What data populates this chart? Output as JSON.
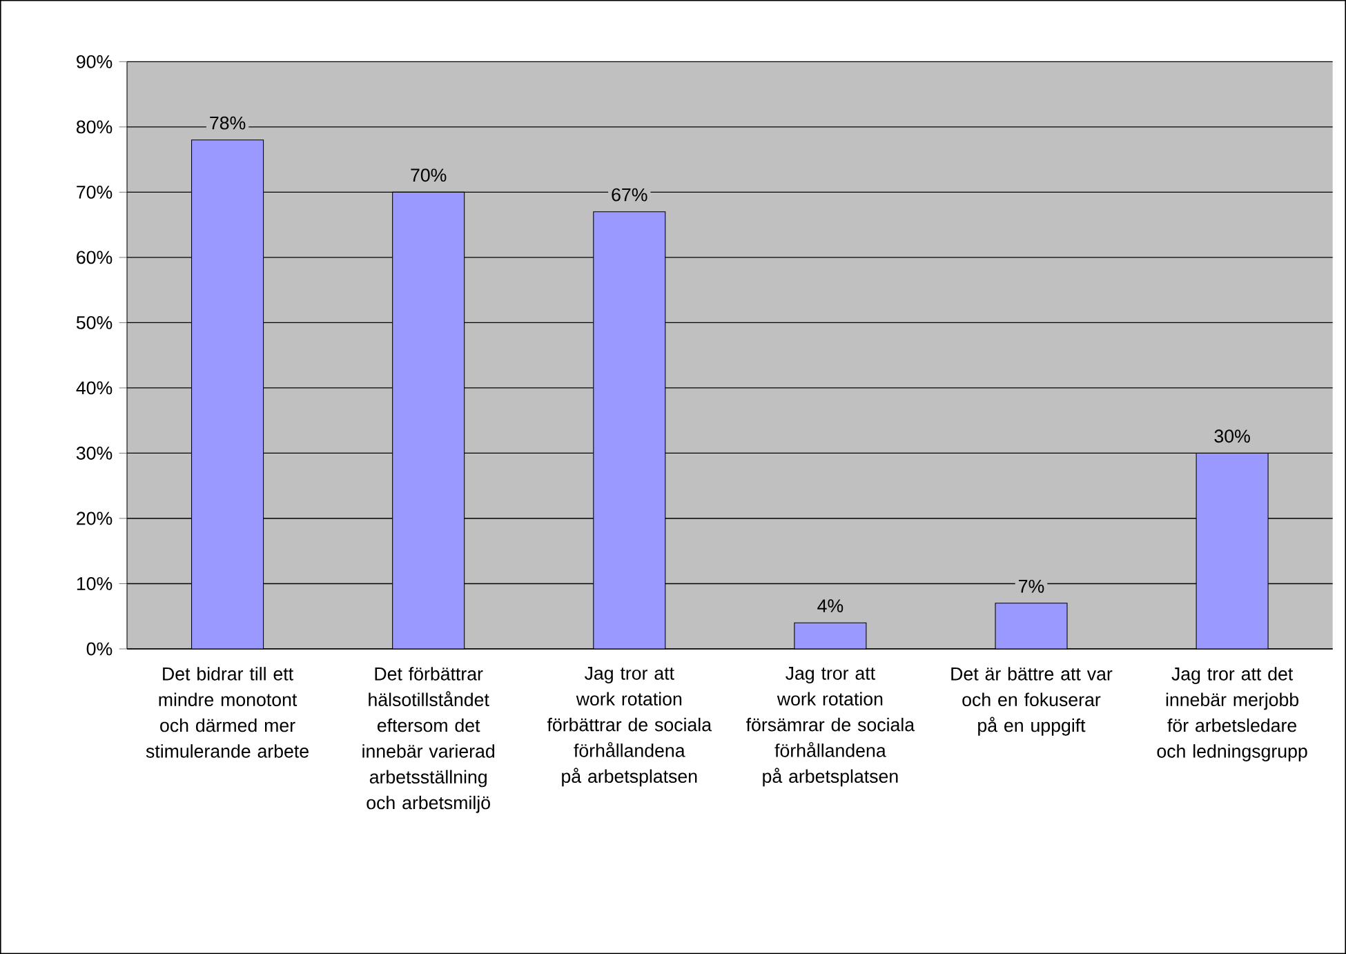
{
  "chart_data": {
    "type": "bar",
    "categories": [
      "Det bidrar till ett mindre monotont och därmed mer stimulerande arbete",
      "Det förbättrar hälsotillståndet eftersom det innebär varierad arbetsställning och arbetsmiljö",
      "Jag tror att work rotation förbättrar de sociala förhållandena på arbetsplatsen",
      "Jag tror att work rotation försämrar de sociala förhållandena på arbetsplatsen",
      "Det är bättre att var och en fokuserar på en uppgift",
      "Jag tror att det innebär merjobb för arbetsledare och ledningsgrupp"
    ],
    "values": [
      78,
      70,
      67,
      4,
      7,
      30
    ],
    "value_labels": [
      "78%",
      "70%",
      "67%",
      "4%",
      "7%",
      "30%"
    ],
    "color": "#9999ff",
    "ylim": [
      0,
      90
    ],
    "yticks": [
      {
        "value": 0,
        "label": "0%"
      },
      {
        "value": 10,
        "label": "10%"
      },
      {
        "value": 20,
        "label": "20%"
      },
      {
        "value": 30,
        "label": "30%"
      },
      {
        "value": 40,
        "label": "40%"
      },
      {
        "value": 50,
        "label": "50%"
      },
      {
        "value": 60,
        "label": "60%"
      },
      {
        "value": 70,
        "label": "70%"
      },
      {
        "value": 80,
        "label": "80%"
      },
      {
        "value": 90,
        "label": "90%"
      }
    ],
    "grid": "y"
  }
}
